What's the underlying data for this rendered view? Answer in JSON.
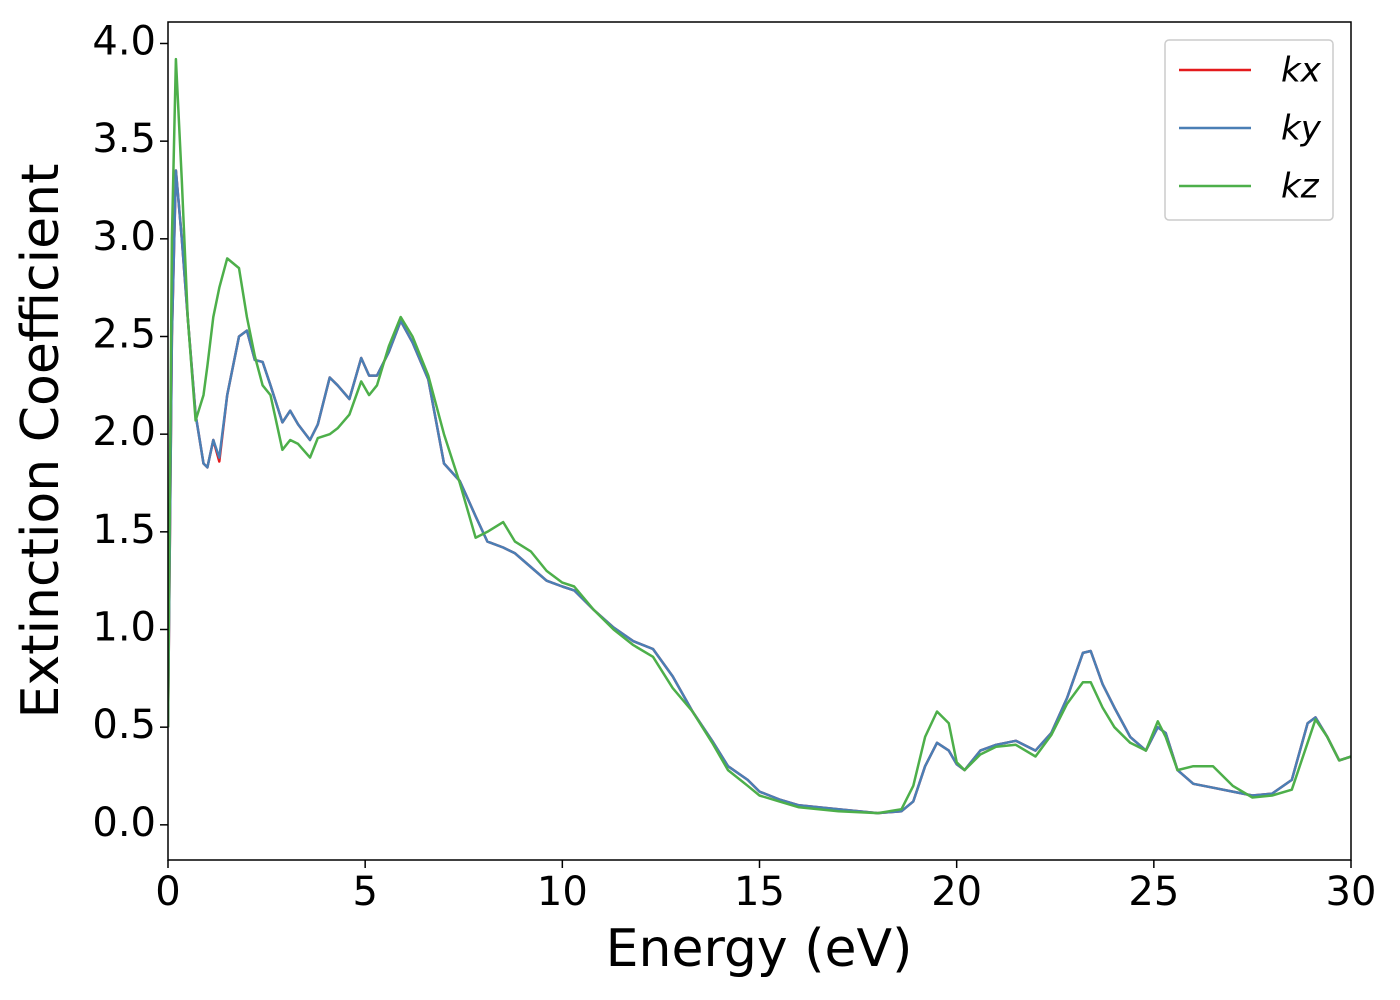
{
  "chart_data": {
    "type": "line",
    "xlabel": "Energy (eV)",
    "ylabel": "Extinction Coefficient",
    "x": [
      0,
      0.1,
      0.2,
      0.35,
      0.5,
      0.7,
      0.9,
      1.0,
      1.15,
      1.3,
      1.5,
      1.8,
      2.0,
      2.2,
      2.4,
      2.6,
      2.9,
      3.1,
      3.3,
      3.6,
      3.8,
      4.1,
      4.3,
      4.6,
      4.9,
      5.1,
      5.3,
      5.6,
      5.9,
      6.2,
      6.6,
      7.0,
      7.4,
      7.8,
      8.1,
      8.5,
      8.8,
      9.2,
      9.6,
      10,
      10.3,
      10.8,
      11.3,
      11.8,
      12.3,
      12.8,
      13.3,
      13.8,
      14.2,
      14.7,
      15.0,
      15.5,
      16,
      17,
      18,
      18.6,
      18.9,
      19.2,
      19.5,
      19.8,
      20.0,
      20.2,
      20.6,
      21.0,
      21.5,
      22.0,
      22.4,
      22.8,
      23.2,
      23.4,
      23.7,
      24.0,
      24.4,
      24.8,
      25.1,
      25.3,
      25.6,
      26.0,
      26.5,
      27.0,
      27.5,
      28.0,
      28.5,
      28.9,
      29.1,
      29.4,
      29.7,
      30
    ],
    "series": [
      {
        "name": "kx",
        "color": "#e41a1c",
        "values": [
          0.5,
          2.5,
          3.35,
          3.0,
          2.6,
          2.1,
          1.85,
          1.83,
          1.97,
          1.86,
          2.2,
          2.5,
          2.53,
          2.38,
          2.37,
          2.25,
          2.06,
          2.12,
          2.05,
          1.97,
          2.05,
          2.29,
          2.25,
          2.18,
          2.39,
          2.3,
          2.3,
          2.42,
          2.58,
          2.47,
          2.28,
          1.85,
          1.76,
          1.58,
          1.45,
          1.42,
          1.39,
          1.32,
          1.25,
          1.22,
          1.2,
          1.1,
          1.01,
          0.94,
          0.9,
          0.76,
          0.58,
          0.43,
          0.3,
          0.23,
          0.17,
          0.13,
          0.1,
          0.08,
          0.06,
          0.07,
          0.12,
          0.3,
          0.42,
          0.38,
          0.31,
          0.28,
          0.38,
          0.41,
          0.43,
          0.38,
          0.47,
          0.65,
          0.88,
          0.89,
          0.72,
          0.6,
          0.45,
          0.38,
          0.5,
          0.47,
          0.28,
          0.21,
          0.19,
          0.17,
          0.15,
          0.16,
          0.23,
          0.52,
          0.55,
          0.45,
          0.33,
          0.35
        ]
      },
      {
        "name": "ky",
        "color": "#4a7fb5",
        "values": [
          0.5,
          2.5,
          3.35,
          3.0,
          2.6,
          2.1,
          1.85,
          1.83,
          1.97,
          1.88,
          2.2,
          2.5,
          2.53,
          2.38,
          2.37,
          2.25,
          2.06,
          2.12,
          2.05,
          1.97,
          2.05,
          2.29,
          2.25,
          2.18,
          2.39,
          2.3,
          2.3,
          2.42,
          2.58,
          2.47,
          2.28,
          1.85,
          1.76,
          1.58,
          1.45,
          1.42,
          1.39,
          1.32,
          1.25,
          1.22,
          1.2,
          1.1,
          1.01,
          0.94,
          0.9,
          0.76,
          0.58,
          0.43,
          0.3,
          0.23,
          0.17,
          0.13,
          0.1,
          0.08,
          0.06,
          0.07,
          0.12,
          0.3,
          0.42,
          0.38,
          0.31,
          0.28,
          0.38,
          0.41,
          0.43,
          0.38,
          0.47,
          0.65,
          0.88,
          0.89,
          0.72,
          0.6,
          0.45,
          0.38,
          0.5,
          0.47,
          0.28,
          0.21,
          0.19,
          0.17,
          0.15,
          0.16,
          0.23,
          0.52,
          0.55,
          0.45,
          0.33,
          0.35
        ]
      },
      {
        "name": "kz",
        "color": "#4daf4a",
        "values": [
          0.5,
          3.0,
          3.92,
          3.3,
          2.6,
          2.07,
          2.2,
          2.35,
          2.6,
          2.75,
          2.9,
          2.85,
          2.6,
          2.4,
          2.25,
          2.2,
          1.92,
          1.97,
          1.95,
          1.88,
          1.98,
          2.0,
          2.03,
          2.1,
          2.27,
          2.2,
          2.25,
          2.45,
          2.6,
          2.5,
          2.3,
          2.0,
          1.75,
          1.47,
          1.5,
          1.55,
          1.45,
          1.4,
          1.3,
          1.24,
          1.22,
          1.1,
          1.0,
          0.92,
          0.86,
          0.7,
          0.58,
          0.42,
          0.28,
          0.2,
          0.15,
          0.12,
          0.09,
          0.07,
          0.06,
          0.08,
          0.2,
          0.45,
          0.58,
          0.52,
          0.32,
          0.28,
          0.36,
          0.4,
          0.41,
          0.35,
          0.46,
          0.62,
          0.73,
          0.73,
          0.6,
          0.5,
          0.42,
          0.38,
          0.53,
          0.45,
          0.28,
          0.3,
          0.3,
          0.2,
          0.14,
          0.15,
          0.18,
          0.42,
          0.54,
          0.45,
          0.33,
          0.35
        ]
      }
    ],
    "xlim": [
      0,
      30
    ],
    "xticks": [
      0,
      5,
      10,
      15,
      20,
      25,
      30
    ],
    "ylim": [
      -0.18,
      4.11
    ],
    "yticks": [
      {
        "value": 0,
        "label": "0.0"
      },
      0.5,
      {
        "value": 1,
        "label": "1.0"
      },
      1.5,
      {
        "value": 2,
        "label": "2.0"
      },
      2.5,
      {
        "value": 3,
        "label": "3.0"
      },
      3.5,
      {
        "value": 4,
        "label": "4.0"
      }
    ],
    "legend": "upper right",
    "grid": false
  }
}
